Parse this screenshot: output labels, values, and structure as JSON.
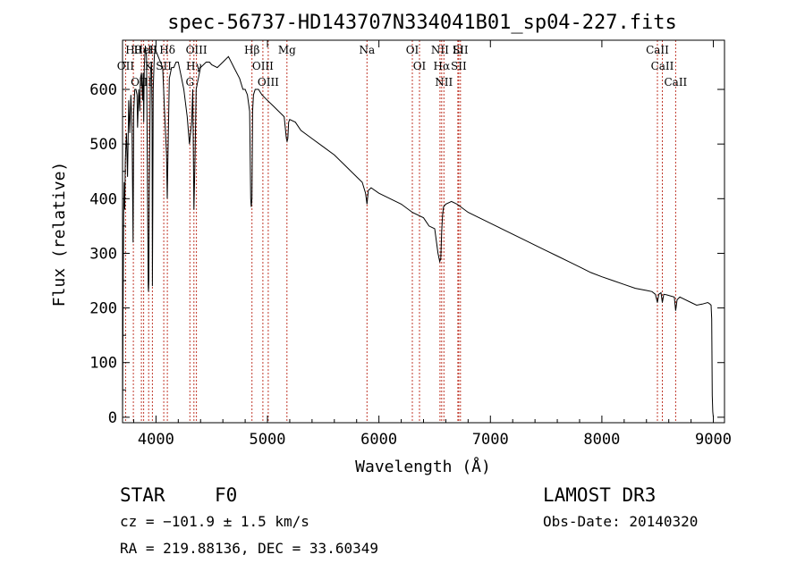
{
  "chart_data": {
    "type": "line",
    "title": "spec-56737-HD143707N334041B01_sp04-227.fits",
    "xlabel": "Wavelength (Å)",
    "ylabel": "Flux (relative)",
    "xlim": [
      3700,
      9100
    ],
    "ylim": [
      -10,
      690
    ],
    "x_ticks": [
      4000,
      5000,
      6000,
      7000,
      8000,
      9000
    ],
    "y_ticks": [
      0,
      100,
      200,
      300,
      400,
      500,
      600
    ],
    "series": [
      {
        "name": "spectrum",
        "x": [
          3700,
          3705,
          3710,
          3715,
          3720,
          3725,
          3735,
          3745,
          3755,
          3765,
          3775,
          3785,
          3795,
          3800,
          3810,
          3820,
          3830,
          3835,
          3845,
          3855,
          3860,
          3870,
          3880,
          3885,
          3890,
          3895,
          3905,
          3915,
          3925,
          3930,
          3933,
          3936,
          3940,
          3950,
          3960,
          3965,
          3968,
          3971,
          3975,
          3985,
          3995,
          4000,
          4020,
          4040,
          4060,
          4075,
          4095,
          4101,
          4107,
          4120,
          4140,
          4160,
          4180,
          4200,
          4220,
          4250,
          4280,
          4300,
          4320,
          4330,
          4340,
          4350,
          4360,
          4380,
          4400,
          4450,
          4480,
          4500,
          4550,
          4600,
          4650,
          4700,
          4750,
          4780,
          4800,
          4820,
          4840,
          4850,
          4855,
          4861,
          4867,
          4875,
          4890,
          4920,
          4950,
          5000,
          5050,
          5100,
          5150,
          5170,
          5176,
          5183,
          5190,
          5200,
          5250,
          5300,
          5400,
          5500,
          5600,
          5700,
          5800,
          5850,
          5880,
          5893,
          5905,
          5930,
          6000,
          6100,
          6200,
          6300,
          6400,
          6450,
          6500,
          6530,
          6545,
          6555,
          6563,
          6571,
          6580,
          6600,
          6650,
          6700,
          6800,
          6900,
          7000,
          7100,
          7200,
          7300,
          7400,
          7500,
          7600,
          7700,
          7800,
          7900,
          8000,
          8100,
          8200,
          8300,
          8400,
          8450,
          8480,
          8498,
          8510,
          8530,
          8542,
          8555,
          8580,
          8650,
          8662,
          8675,
          8700,
          8800,
          8850,
          8900,
          8950,
          8970,
          8980,
          8985,
          8990,
          8995,
          9000
        ],
        "values": [
          0,
          200,
          370,
          430,
          380,
          470,
          520,
          440,
          580,
          520,
          590,
          530,
          320,
          560,
          600,
          600,
          590,
          530,
          600,
          560,
          620,
          630,
          580,
          630,
          540,
          640,
          680,
          660,
          400,
          240,
          230,
          250,
          420,
          630,
          650,
          560,
          240,
          380,
          600,
          660,
          680,
          670,
          660,
          650,
          640,
          570,
          480,
          400,
          470,
          620,
          640,
          640,
          650,
          650,
          630,
          600,
          550,
          500,
          540,
          600,
          380,
          470,
          600,
          620,
          640,
          650,
          650,
          645,
          640,
          650,
          660,
          640,
          620,
          600,
          600,
          590,
          560,
          400,
          385,
          400,
          560,
          590,
          600,
          600,
          590,
          580,
          570,
          560,
          550,
          510,
          505,
          510,
          540,
          545,
          540,
          525,
          510,
          495,
          480,
          460,
          440,
          430,
          410,
          390,
          415,
          420,
          410,
          400,
          390,
          375,
          365,
          350,
          345,
          300,
          285,
          290,
          340,
          370,
          385,
          390,
          395,
          390,
          375,
          365,
          355,
          345,
          335,
          325,
          315,
          305,
          295,
          285,
          275,
          265,
          257,
          250,
          243,
          236,
          232,
          230,
          225,
          210,
          225,
          228,
          210,
          225,
          224,
          220,
          195,
          215,
          220,
          210,
          205,
          207,
          210,
          207,
          205,
          180,
          40,
          10,
          0
        ]
      }
    ],
    "spectral_lines": [
      {
        "label": "Hθ",
        "wavelength": 3797
      },
      {
        "label": "OII",
        "wavelength": 3727
      },
      {
        "label": "OIII",
        "wavelength": 3869
      },
      {
        "label": "HeI",
        "wavelength": 3889
      },
      {
        "label": "K",
        "wavelength": 3934
      },
      {
        "label": "H",
        "wavelength": 3968
      },
      {
        "label": "SII",
        "wavelength": 4070
      },
      {
        "label": "Hδ",
        "wavelength": 4102
      },
      {
        "label": "OIII",
        "wavelength": 4363
      },
      {
        "label": "Hγ",
        "wavelength": 4340
      },
      {
        "label": "G",
        "wavelength": 4304
      },
      {
        "label": "Hβ",
        "wavelength": 4861
      },
      {
        "label": "OIII",
        "wavelength": 4959
      },
      {
        "label": "OIII",
        "wavelength": 5007
      },
      {
        "label": "Mg",
        "wavelength": 5175
      },
      {
        "label": "Na",
        "wavelength": 5893
      },
      {
        "label": "OI",
        "wavelength": 6300
      },
      {
        "label": "OI",
        "wavelength": 6364
      },
      {
        "label": "NII",
        "wavelength": 6548
      },
      {
        "label": "Hα",
        "wavelength": 6563
      },
      {
        "label": "NII",
        "wavelength": 6583
      },
      {
        "label": "SII",
        "wavelength": 6716
      },
      {
        "label": "Li",
        "wavelength": 6708
      },
      {
        "label": "SII",
        "wavelength": 6731
      },
      {
        "label": "CaII",
        "wavelength": 8498
      },
      {
        "label": "CaII",
        "wavelength": 8542
      },
      {
        "label": "CaII",
        "wavelength": 8662
      }
    ]
  },
  "info": {
    "object_type": "STAR",
    "subclass": "F0",
    "survey": "LAMOST DR3",
    "cz": "cz = −101.9 ± 1.5 km/s",
    "obs_date": "Obs-Date: 20140320",
    "coords": "RA = 219.88136, DEC =  33.60349"
  },
  "colors": {
    "line_marker": "#c0392b",
    "spectrum": "#000000"
  }
}
